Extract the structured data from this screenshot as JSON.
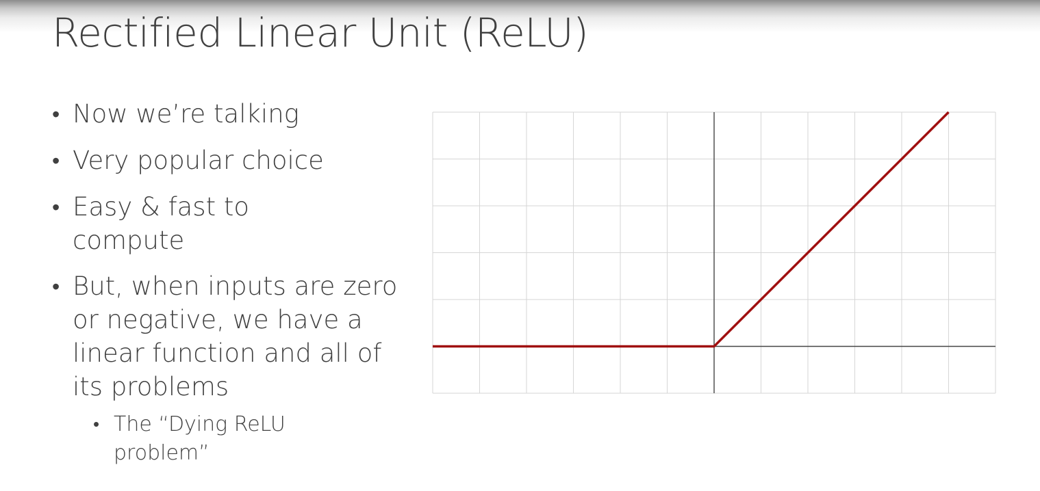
{
  "slide": {
    "title": "Rectified Linear Unit (ReLU)"
  },
  "bullets": [
    {
      "text": "Now we’re talking"
    },
    {
      "text": "Very popular choice"
    },
    {
      "text": "Easy & fast to compute"
    },
    {
      "text": "But, when inputs are zero or negative, we have a linear function and all of its problems"
    }
  ],
  "sub_bullets": [
    {
      "text": "The “Dying ReLU problem”"
    }
  ],
  "chart_data": {
    "type": "line",
    "title": "",
    "xlabel": "",
    "ylabel": "",
    "xlim": [
      -6,
      6
    ],
    "ylim": [
      -1,
      5
    ],
    "grid": true,
    "series": [
      {
        "color": "#a01010",
        "x": [
          -6,
          0,
          5
        ],
        "y": [
          0,
          0,
          5
        ]
      }
    ]
  }
}
